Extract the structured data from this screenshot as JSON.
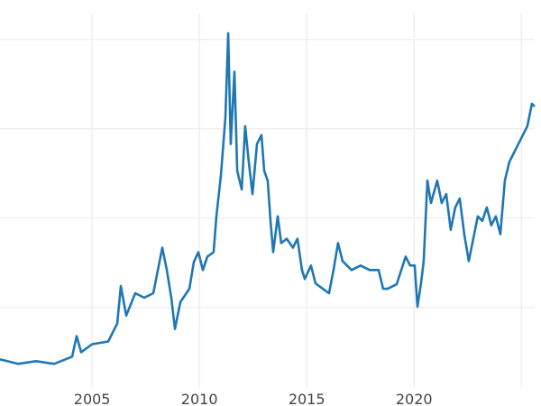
{
  "chart_data": {
    "type": "line",
    "title": "",
    "xlabel": "",
    "ylabel": "",
    "x_ticks": [
      2005,
      2010,
      2015,
      2020,
      2025
    ],
    "x_tick_labels": [
      "2005",
      "2010",
      "2015",
      "2020",
      ""
    ],
    "y_gridlines": [
      10,
      20,
      30,
      40
    ],
    "y_tick_labels_shown": false,
    "xlim": [
      2000.71,
      2025.62
    ],
    "ylim": [
      1.0,
      42.9
    ],
    "grid": true,
    "line_color": "#1f77b4",
    "grid_color": "#ebebeb",
    "series": [
      {
        "x": [
          2000.71,
          2001.55,
          2002.39,
          2003.23,
          2004.07,
          2004.28,
          2004.49,
          2005.0,
          2005.75,
          2006.17,
          2006.34,
          2006.59,
          2007.01,
          2007.43,
          2007.85,
          2008.27,
          2008.48,
          2008.69,
          2008.86,
          2009.11,
          2009.53,
          2009.74,
          2009.95,
          2010.16,
          2010.37,
          2010.66,
          2010.79,
          2011.0,
          2011.21,
          2011.34,
          2011.46,
          2011.63,
          2011.76,
          2011.97,
          2012.13,
          2012.3,
          2012.47,
          2012.68,
          2012.89,
          2013.02,
          2013.18,
          2013.31,
          2013.44,
          2013.65,
          2013.81,
          2014.07,
          2014.36,
          2014.57,
          2014.78,
          2014.91,
          2015.2,
          2015.41,
          2015.75,
          2016.04,
          2016.25,
          2016.46,
          2016.67,
          2017.09,
          2017.51,
          2017.93,
          2018.35,
          2018.56,
          2018.77,
          2019.19,
          2019.61,
          2019.82,
          2020.03,
          2020.16,
          2020.32,
          2020.45,
          2020.62,
          2020.79,
          2021.08,
          2021.29,
          2021.5,
          2021.71,
          2021.92,
          2022.13,
          2022.34,
          2022.55,
          2022.76,
          2022.97,
          2023.18,
          2023.39,
          2023.6,
          2023.81,
          2024.02,
          2024.23,
          2024.44,
          2024.65,
          2024.86,
          2025.07,
          2025.28,
          2025.49,
          2025.62
        ],
        "values": [
          4.2,
          3.7,
          4.0,
          3.7,
          4.5,
          6.8,
          5.0,
          5.9,
          6.2,
          8.2,
          12.4,
          9.1,
          11.6,
          11.1,
          11.6,
          16.7,
          14.2,
          11.1,
          7.6,
          10.6,
          12.1,
          15.1,
          16.2,
          14.2,
          15.7,
          16.2,
          20.2,
          24.8,
          31.3,
          40.7,
          28.3,
          36.4,
          25.3,
          23.2,
          30.3,
          26.3,
          22.7,
          28.3,
          29.3,
          25.3,
          24.2,
          19.7,
          16.2,
          20.2,
          17.2,
          17.7,
          16.7,
          17.7,
          14.2,
          13.2,
          14.7,
          12.7,
          12.1,
          11.6,
          14.2,
          17.2,
          15.2,
          14.2,
          14.7,
          14.2,
          14.2,
          12.1,
          12.1,
          12.6,
          15.7,
          14.7,
          14.7,
          10.1,
          12.6,
          15.2,
          24.2,
          21.7,
          24.2,
          21.7,
          22.7,
          18.7,
          21.2,
          22.2,
          18.2,
          15.2,
          17.7,
          20.2,
          19.7,
          21.2,
          19.2,
          20.2,
          18.2,
          24.2,
          26.3,
          27.3,
          28.3,
          29.3,
          30.3,
          32.8,
          32.5
        ]
      }
    ]
  }
}
